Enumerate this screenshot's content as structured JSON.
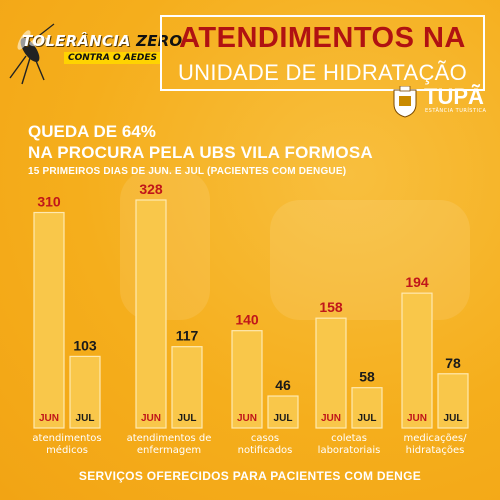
{
  "brand": {
    "campaign_line1a": "TOLERÂNCIA",
    "campaign_line1b": "ZERO",
    "campaign_line2": "CONTRA O AEDES",
    "city_name": "TUPÃ",
    "city_tagline": "ESTÂNCIA TURÍSTICA"
  },
  "header": {
    "title_line1": "ATENDIMENTOS NA",
    "title_line2": "UNIDADE DE HIDRATAÇÃO"
  },
  "headline": {
    "line1": "QUEDA DE 64%",
    "line2": "NA PROCURA PELA UBS VILA FORMOSA",
    "subtitle": "15 PRIMEIROS DIAS DE JUN. E JUL (PACIENTES COM DENGUE)"
  },
  "footer": {
    "text": "SERVIÇOS OFERECIDOS PARA PACIENTES COM DENGE"
  },
  "colors": {
    "background": "#f5ae1c",
    "title_red": "#b01212",
    "bar_fill": "#f9c74a",
    "bar_stroke": "#ffe9b0",
    "jun_label": "#c0161a",
    "jul_label": "#1a1a1a"
  },
  "chart_data": {
    "type": "bar",
    "categories": [
      "atendimentos\nmédicos",
      "atendimentos de\nenfermagem",
      "casos\nnotificados",
      "coletas\nlaboratoriais",
      "medicações/\nhidratações"
    ],
    "series": [
      {
        "name": "JUN",
        "values": [
          310,
          328,
          140,
          158,
          194
        ]
      },
      {
        "name": "JUL",
        "values": [
          103,
          117,
          46,
          58,
          78
        ]
      }
    ],
    "ylim": [
      0,
      328
    ],
    "grid": false,
    "legend": "none"
  }
}
